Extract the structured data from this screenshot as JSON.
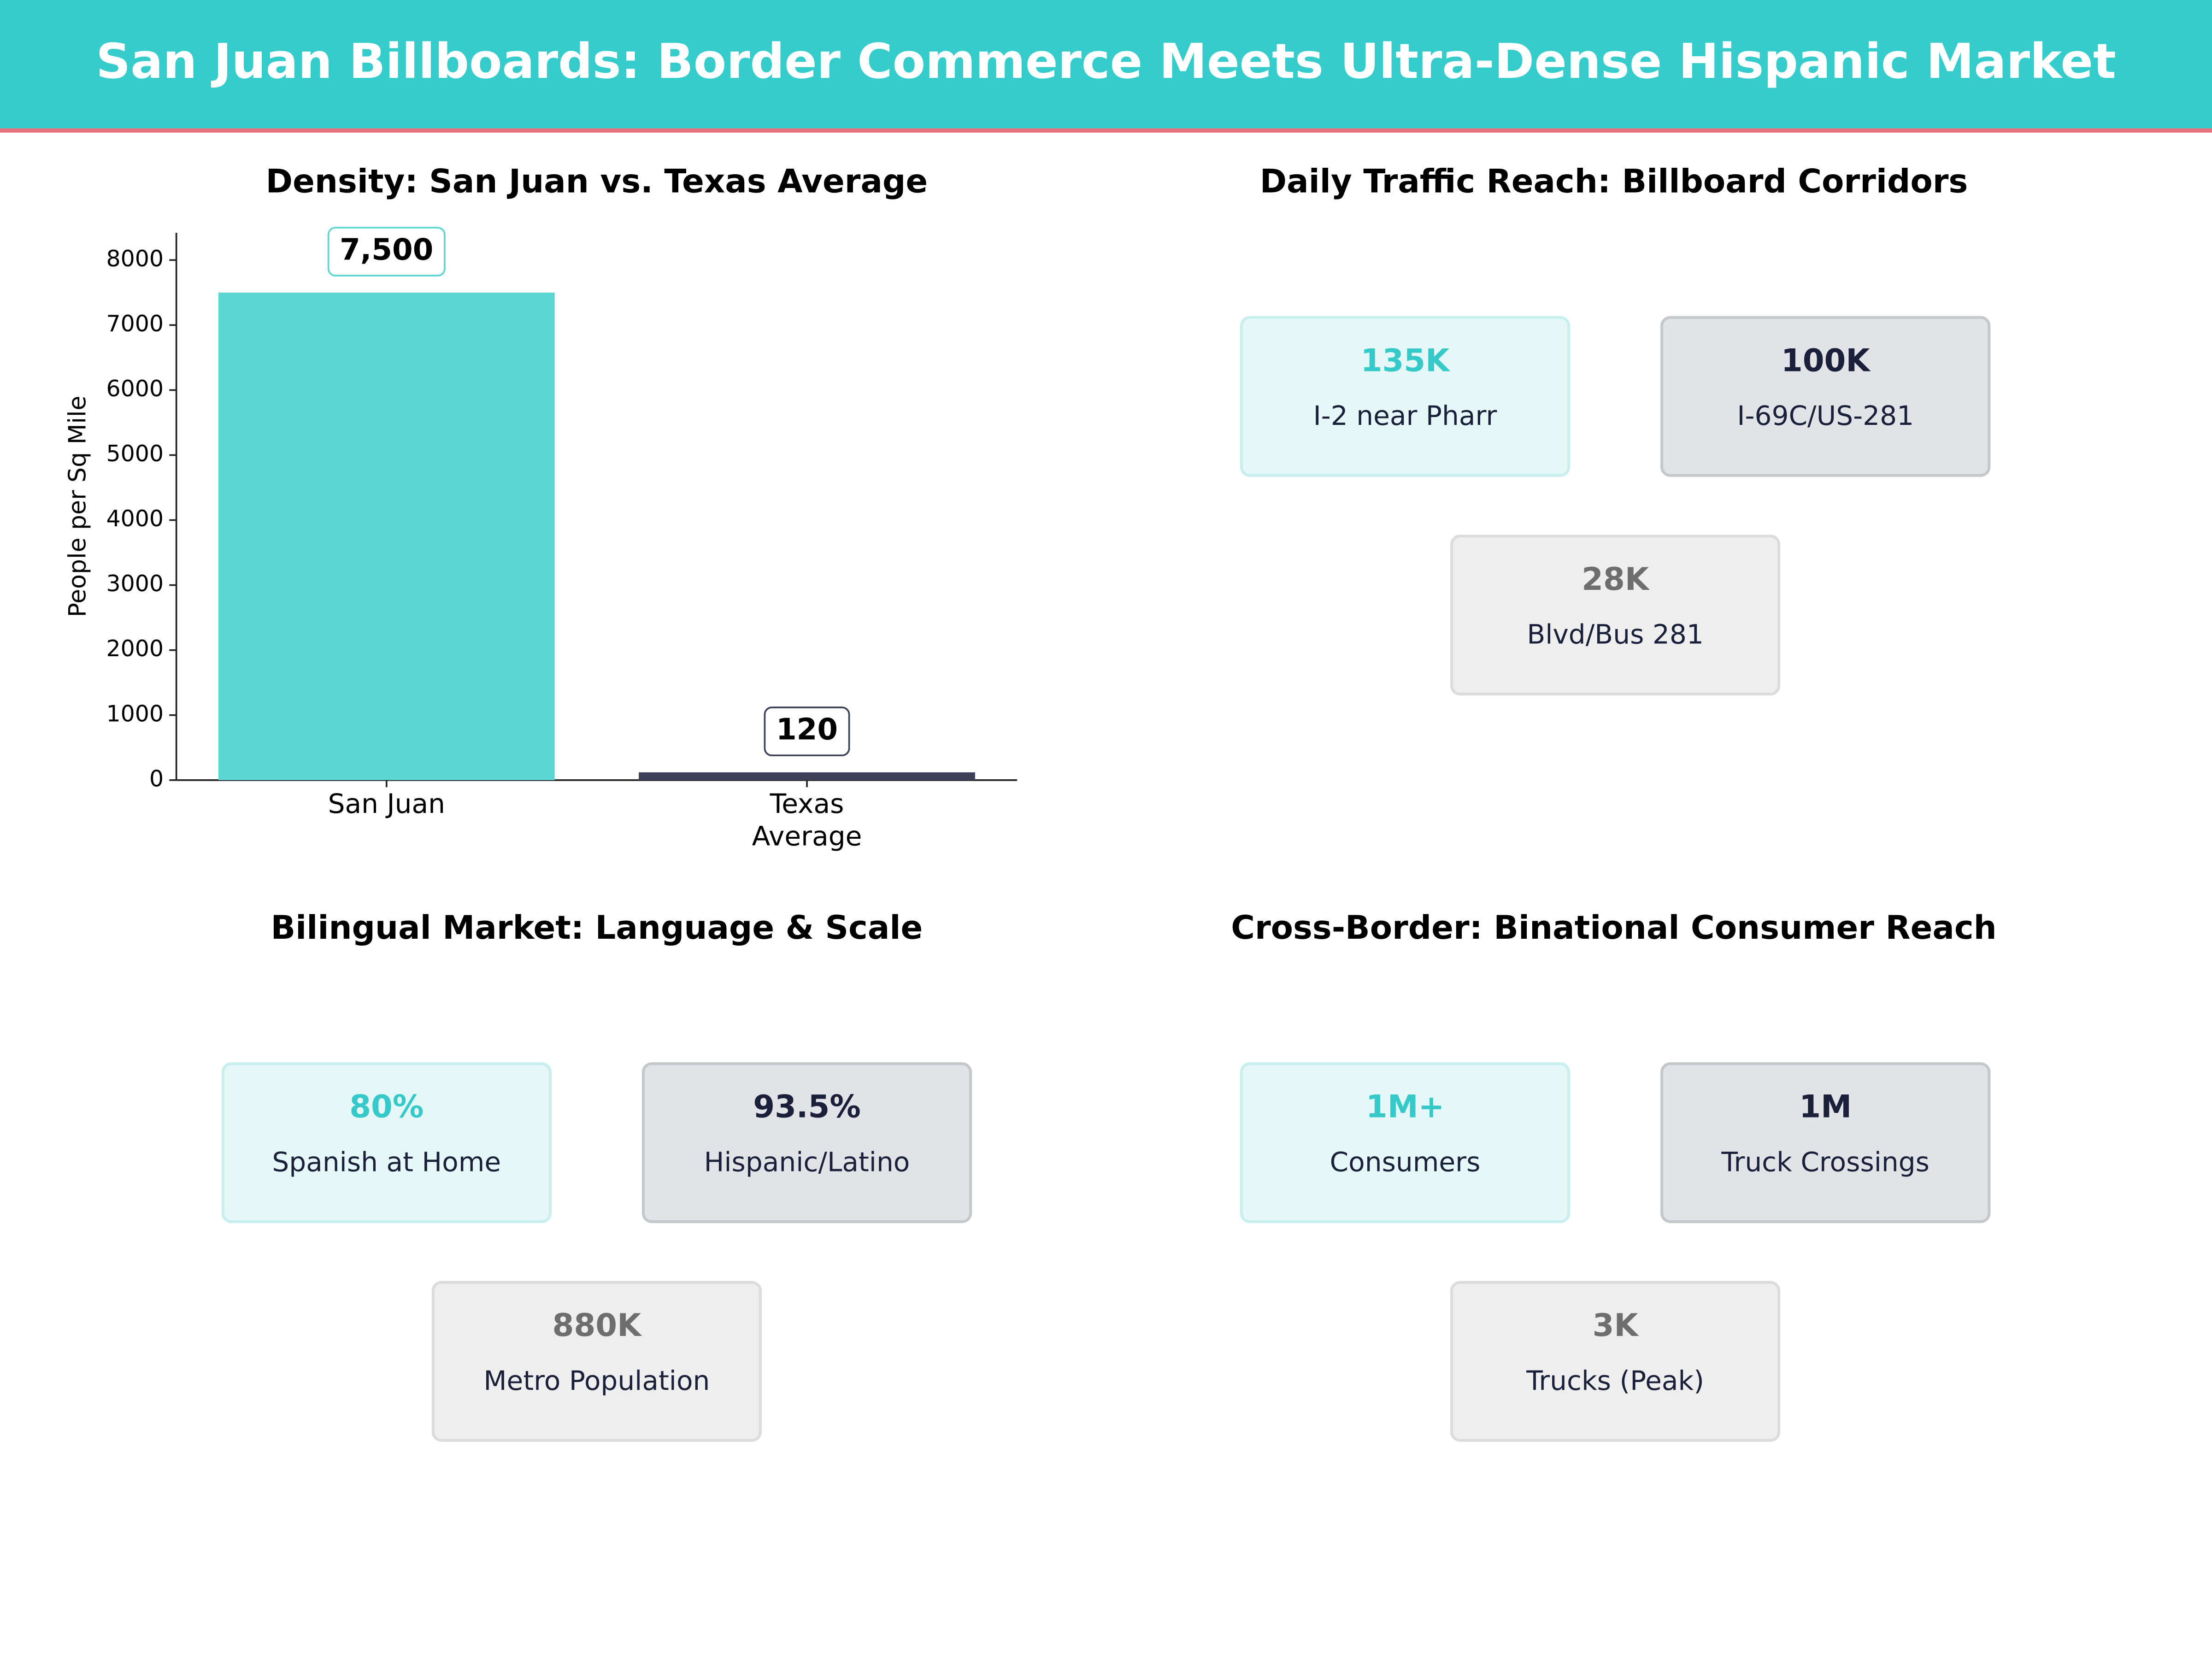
{
  "title": "San Juan Billboards: Border Commerce Meets Ultra-Dense Hispanic Market",
  "chart_data": {
    "type": "bar",
    "title": "Density: San Juan vs. Texas Average",
    "y_label": "People per Sq Mile",
    "categories": [
      "San Juan",
      "Texas\nAverage"
    ],
    "values": [
      7500,
      120
    ],
    "value_labels": [
      "7,500",
      "120"
    ],
    "colors": [
      "#5cd6d3",
      "#3d4159"
    ],
    "ylim": [
      0,
      8420
    ],
    "yticks": [
      0,
      1000,
      2000,
      3000,
      4000,
      5000,
      6000,
      7000,
      8000
    ]
  },
  "panels": [
    {
      "title": "Daily Traffic Reach: Billboard Corridors",
      "cards": [
        {
          "value": "135K",
          "label": "I-2 near Pharr"
        },
        {
          "value": "100K",
          "label": "I-69C/US-281"
        },
        {
          "value": "28K",
          "label": "Blvd/Bus 281"
        }
      ]
    },
    {
      "title": "Bilingual Market: Language & Scale",
      "cards": [
        {
          "value": "80%",
          "label": "Spanish at Home"
        },
        {
          "value": "93.5%",
          "label": "Hispanic/Latino"
        },
        {
          "value": "880K",
          "label": "Metro Population"
        }
      ]
    },
    {
      "title": "Cross-Border: Binational Consumer Reach",
      "cards": [
        {
          "value": "1M+",
          "label": "Consumers"
        },
        {
          "value": "1M",
          "label": "Truck Crossings"
        },
        {
          "value": "3K",
          "label": "Trucks (Peak)"
        }
      ]
    }
  ]
}
